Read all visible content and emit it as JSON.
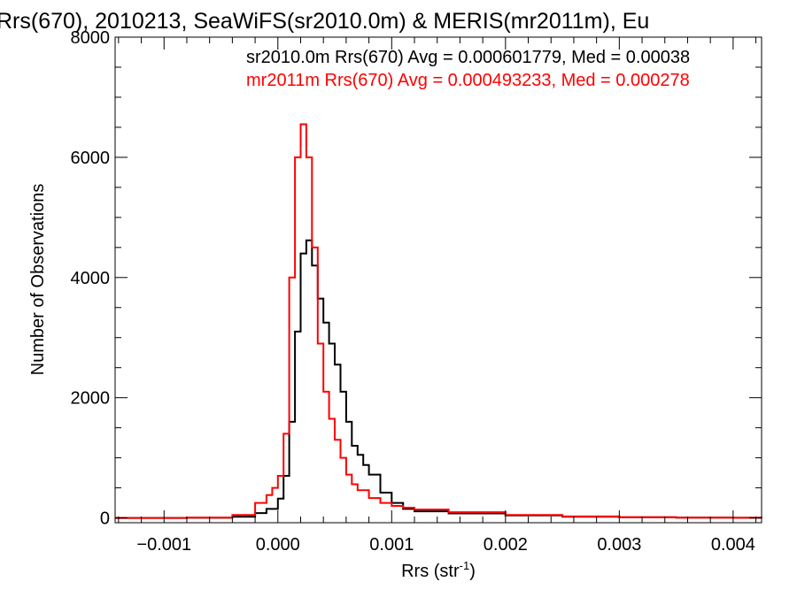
{
  "chart_data": {
    "type": "line",
    "title": "Rrs(670), 2010213, SeaWiFS(sr2010.0m) & MERIS(mr2011m), Eu",
    "xlabel": "Rrs (str",
    "xlabel_sup": "-1",
    "xlabel_close": ")",
    "ylabel": "Number of Observations",
    "xlim": [
      -0.00143,
      0.00425
    ],
    "ylim": [
      -80,
      8000
    ],
    "xticks": [
      -0.001,
      0.0,
      0.001,
      0.002,
      0.003,
      0.004
    ],
    "xtick_labels": [
      "−0.001",
      "0.000",
      "0.001",
      "0.002",
      "0.003",
      "0.004"
    ],
    "yticks": [
      0,
      2000,
      4000,
      6000,
      8000
    ],
    "ytick_labels": [
      "0",
      "2000",
      "4000",
      "6000",
      "8000"
    ],
    "grid": false,
    "legend_position": "top-right",
    "series": [
      {
        "name": "sr2010.0m Rrs(670) Avg = 0.000601779, Med = 0.00038",
        "color": "#000000",
        "x": [
          -0.00143,
          -0.0008,
          -0.0004,
          -0.0002,
          -0.0001,
          0.0,
          5e-05,
          0.0001,
          0.00015,
          0.0002,
          0.00025,
          0.0003,
          0.00035,
          0.0004,
          0.00045,
          0.0005,
          0.00055,
          0.0006,
          0.00065,
          0.0007,
          0.00075,
          0.0008,
          0.0009,
          0.001,
          0.0011,
          0.0012,
          0.0015,
          0.002,
          0.0025,
          0.003,
          0.0035,
          0.004,
          0.00425
        ],
        "y": [
          0,
          2,
          20,
          80,
          150,
          320,
          700,
          1600,
          3100,
          4400,
          4620,
          4200,
          3650,
          3250,
          2900,
          2550,
          2100,
          1600,
          1200,
          1050,
          880,
          720,
          420,
          250,
          150,
          110,
          75,
          40,
          20,
          10,
          5,
          2,
          0
        ]
      },
      {
        "name": "mr2011m Rrs(670) Avg = 0.000493233, Med = 0.000278",
        "color": "#ff0000",
        "x": [
          -0.00143,
          -0.0008,
          -0.0004,
          -0.0002,
          -0.0001,
          -5e-05,
          0.0,
          5e-05,
          0.0001,
          0.00015,
          0.0002,
          0.00025,
          0.0003,
          0.00035,
          0.0004,
          0.00045,
          0.0005,
          0.00055,
          0.0006,
          0.00065,
          0.0007,
          0.0008,
          0.0009,
          0.001,
          0.0011,
          0.0012,
          0.0015,
          0.002,
          0.0025,
          0.003,
          0.0035,
          0.004,
          0.00425
        ],
        "y": [
          0,
          5,
          50,
          250,
          380,
          500,
          700,
          1400,
          4000,
          6000,
          6550,
          6000,
          4500,
          2900,
          2100,
          1650,
          1300,
          1000,
          720,
          560,
          460,
          330,
          250,
          200,
          170,
          140,
          95,
          50,
          25,
          12,
          6,
          3,
          0
        ]
      }
    ]
  }
}
